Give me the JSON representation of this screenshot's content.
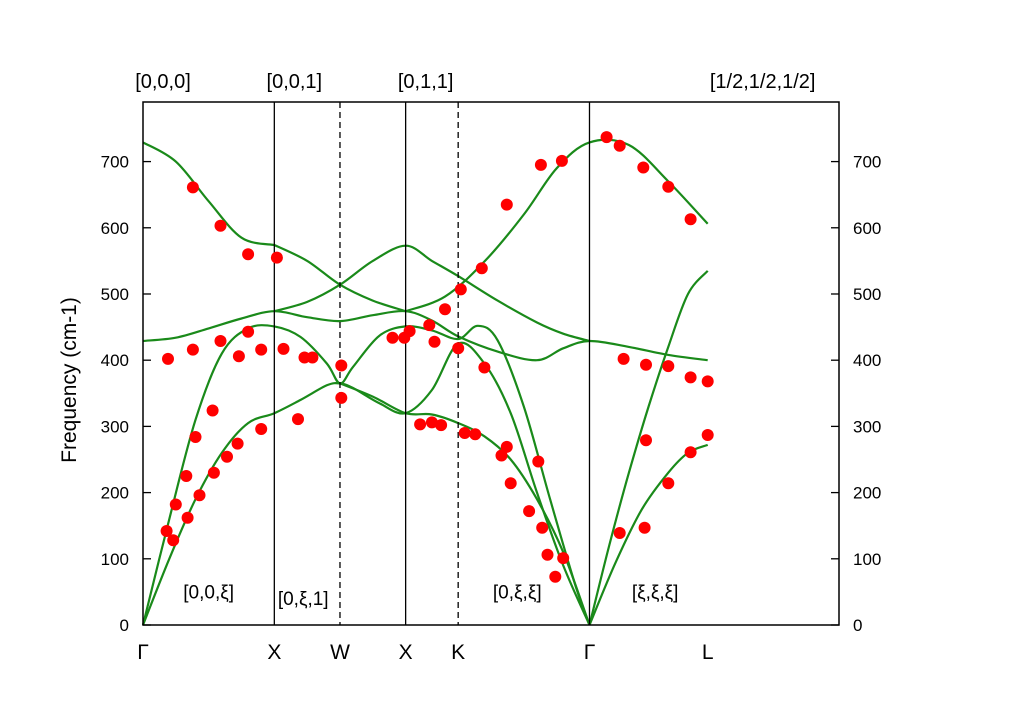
{
  "chart_data": {
    "type": "scatter",
    "ylabel": "Frequency (cm-1)",
    "ylim": [
      0,
      790
    ],
    "yticks": [
      0,
      100,
      200,
      300,
      400,
      500,
      600,
      700
    ],
    "grid": false,
    "legend": "none",
    "colors": {
      "calc_line": "#1a8a1a",
      "exp_point": "#ff0000",
      "axis": "#000000"
    },
    "x_range": [
      0,
      5.3
    ],
    "symmetry_points": [
      {
        "label": "Γ",
        "x": 0
      },
      {
        "label": "X",
        "x": 1
      },
      {
        "label": "W",
        "x": 1.5
      },
      {
        "label": "X",
        "x": 2
      },
      {
        "label": "K",
        "x": 2.4
      },
      {
        "label": "Γ",
        "x": 3.4
      },
      {
        "label": "L",
        "x": 4.3
      }
    ],
    "solid_dividers": [
      1,
      2,
      3.4
    ],
    "dashed_dividers": [
      1.5,
      2.4
    ],
    "top_labels": [
      {
        "text": "[0,0,0]",
        "x": 0
      },
      {
        "text": "[0,0,1]",
        "x": 1
      },
      {
        "text": "[0,1,1]",
        "x": 2
      },
      {
        "text": "[1/2,1/2,1/2]",
        "x": 4.3
      }
    ],
    "segment_labels": [
      {
        "text": "[0,0,ξ]",
        "x": 0.5,
        "y": 40
      },
      {
        "text": "[0,ξ,1]",
        "x": 1.22,
        "y": 30
      },
      {
        "text": "[0,ξ,ξ]",
        "x": 2.85,
        "y": 40
      },
      {
        "text": "[ξ,ξ,ξ]",
        "x": 3.9,
        "y": 40
      }
    ],
    "series": [
      {
        "type": "line",
        "x": [
          0,
          0.25,
          0.5,
          0.75,
          1
        ],
        "y": [
          729,
          700,
          640,
          585,
          574
        ]
      },
      {
        "type": "line",
        "x": [
          1,
          1.25,
          1.5,
          1.75,
          2
        ],
        "y": [
          574,
          550,
          514,
          490,
          474
        ]
      },
      {
        "type": "line",
        "x": [
          2,
          2.3,
          2.6,
          2.9,
          3.15,
          3.4,
          3.7,
          4,
          4.3
        ],
        "y": [
          474,
          496,
          549,
          620,
          690,
          729,
          725,
          670,
          606
        ]
      },
      {
        "type": "line",
        "x": [
          1,
          1.25,
          1.5,
          1.75,
          2,
          2.2,
          2.4,
          2.7,
          3,
          3.2,
          3.4
        ],
        "y": [
          474,
          488,
          514,
          550,
          573,
          550,
          527,
          490,
          457,
          440,
          429
        ]
      },
      {
        "type": "line",
        "x": [
          0,
          0.25,
          0.5,
          0.75,
          1,
          1.25,
          1.5,
          1.75,
          2,
          2.2,
          2.4,
          2.7,
          3,
          3.2,
          3.4,
          3.7,
          4,
          4.3
        ],
        "y": [
          429,
          434,
          448,
          463,
          474,
          465,
          459,
          468,
          474,
          460,
          436,
          413,
          400,
          418,
          429,
          420,
          408,
          400
        ]
      },
      {
        "type": "line",
        "x": [
          0,
          0.2,
          0.4,
          0.6,
          0.8,
          1,
          1.2,
          1.4,
          1.5,
          1.6,
          1.8,
          2,
          2.2,
          2.4,
          2.55,
          2.7,
          2.9,
          3.1,
          3.3,
          3.4
        ],
        "y": [
          0,
          160,
          310,
          410,
          448,
          451,
          435,
          395,
          365,
          390,
          437,
          451,
          445,
          432,
          452,
          430,
          330,
          190,
          55,
          0
        ]
      },
      {
        "type": "line",
        "x": [
          0,
          0.2,
          0.4,
          0.6,
          0.8,
          1,
          1.2,
          1.4,
          1.5,
          1.6,
          1.8,
          2,
          2.2,
          2.4,
          2.6,
          2.8,
          3,
          3.2,
          3.4
        ],
        "y": [
          0,
          100,
          190,
          260,
          305,
          320,
          340,
          362,
          365,
          358,
          335,
          320,
          355,
          425,
          395,
          320,
          200,
          90,
          0
        ]
      },
      {
        "type": "line",
        "x": [
          1.5,
          1.75,
          2,
          2.2,
          2.4,
          2.6,
          2.8,
          3,
          3.2,
          3.4
        ],
        "y": [
          365,
          345,
          320,
          318,
          305,
          285,
          250,
          190,
          110,
          0
        ]
      },
      {
        "type": "line",
        "x": [
          3.4,
          3.55,
          3.7,
          3.85,
          4,
          4.15,
          4.3
        ],
        "y": [
          0,
          120,
          230,
          330,
          420,
          500,
          535
        ]
      },
      {
        "type": "line",
        "x": [
          3.4,
          3.6,
          3.8,
          4,
          4.15,
          4.3
        ],
        "y": [
          0,
          95,
          175,
          230,
          260,
          272
        ]
      },
      {
        "type": "scatter",
        "points": [
          [
            0.19,
            402
          ],
          [
            0.38,
            416
          ],
          [
            0.59,
            429
          ],
          [
            0.73,
            406
          ],
          [
            0.8,
            443
          ],
          [
            0.9,
            416
          ],
          [
            1.07,
            417
          ],
          [
            1.23,
            404
          ],
          [
            1.29,
            404
          ],
          [
            1.51,
            392
          ],
          [
            0.38,
            661
          ],
          [
            0.59,
            603
          ],
          [
            0.8,
            560
          ],
          [
            1.02,
            555
          ],
          [
            0.18,
            142
          ],
          [
            0.23,
            128
          ],
          [
            0.25,
            182
          ],
          [
            0.33,
            225
          ],
          [
            0.34,
            162
          ],
          [
            0.4,
            284
          ],
          [
            0.43,
            196
          ],
          [
            0.53,
            324
          ],
          [
            0.54,
            230
          ],
          [
            0.64,
            254
          ],
          [
            0.72,
            274
          ],
          [
            0.9,
            296
          ],
          [
            1.18,
            311
          ],
          [
            1.51,
            343
          ],
          [
            1.9,
            434
          ],
          [
            1.99,
            434
          ],
          [
            2.03,
            444
          ],
          [
            2.18,
            453
          ],
          [
            2.22,
            428
          ],
          [
            2.3,
            477
          ],
          [
            2.4,
            418
          ],
          [
            2.42,
            507
          ],
          [
            2.58,
            539
          ],
          [
            2.6,
            389
          ],
          [
            2.11,
            303
          ],
          [
            2.2,
            306
          ],
          [
            2.27,
            302
          ],
          [
            2.45,
            290
          ],
          [
            2.53,
            288
          ],
          [
            2.73,
            256
          ],
          [
            2.77,
            269
          ],
          [
            2.8,
            214
          ],
          [
            2.77,
            635
          ],
          [
            3.03,
            695
          ],
          [
            3.19,
            701
          ],
          [
            3.53,
            737
          ],
          [
            3.63,
            724
          ],
          [
            3.81,
            691
          ],
          [
            4.0,
            662
          ],
          [
            4.17,
            613
          ],
          [
            2.94,
            172
          ],
          [
            3.04,
            147
          ],
          [
            3.08,
            106
          ],
          [
            3.14,
            73
          ],
          [
            3.2,
            101
          ],
          [
            3.01,
            247
          ],
          [
            3.66,
            402
          ],
          [
            3.83,
            393
          ],
          [
            4.0,
            391
          ],
          [
            4.17,
            374
          ],
          [
            4.3,
            368
          ],
          [
            3.63,
            139
          ],
          [
            3.82,
            147
          ],
          [
            3.83,
            279
          ],
          [
            4.0,
            214
          ],
          [
            4.17,
            261
          ],
          [
            4.3,
            287
          ]
        ]
      }
    ]
  }
}
